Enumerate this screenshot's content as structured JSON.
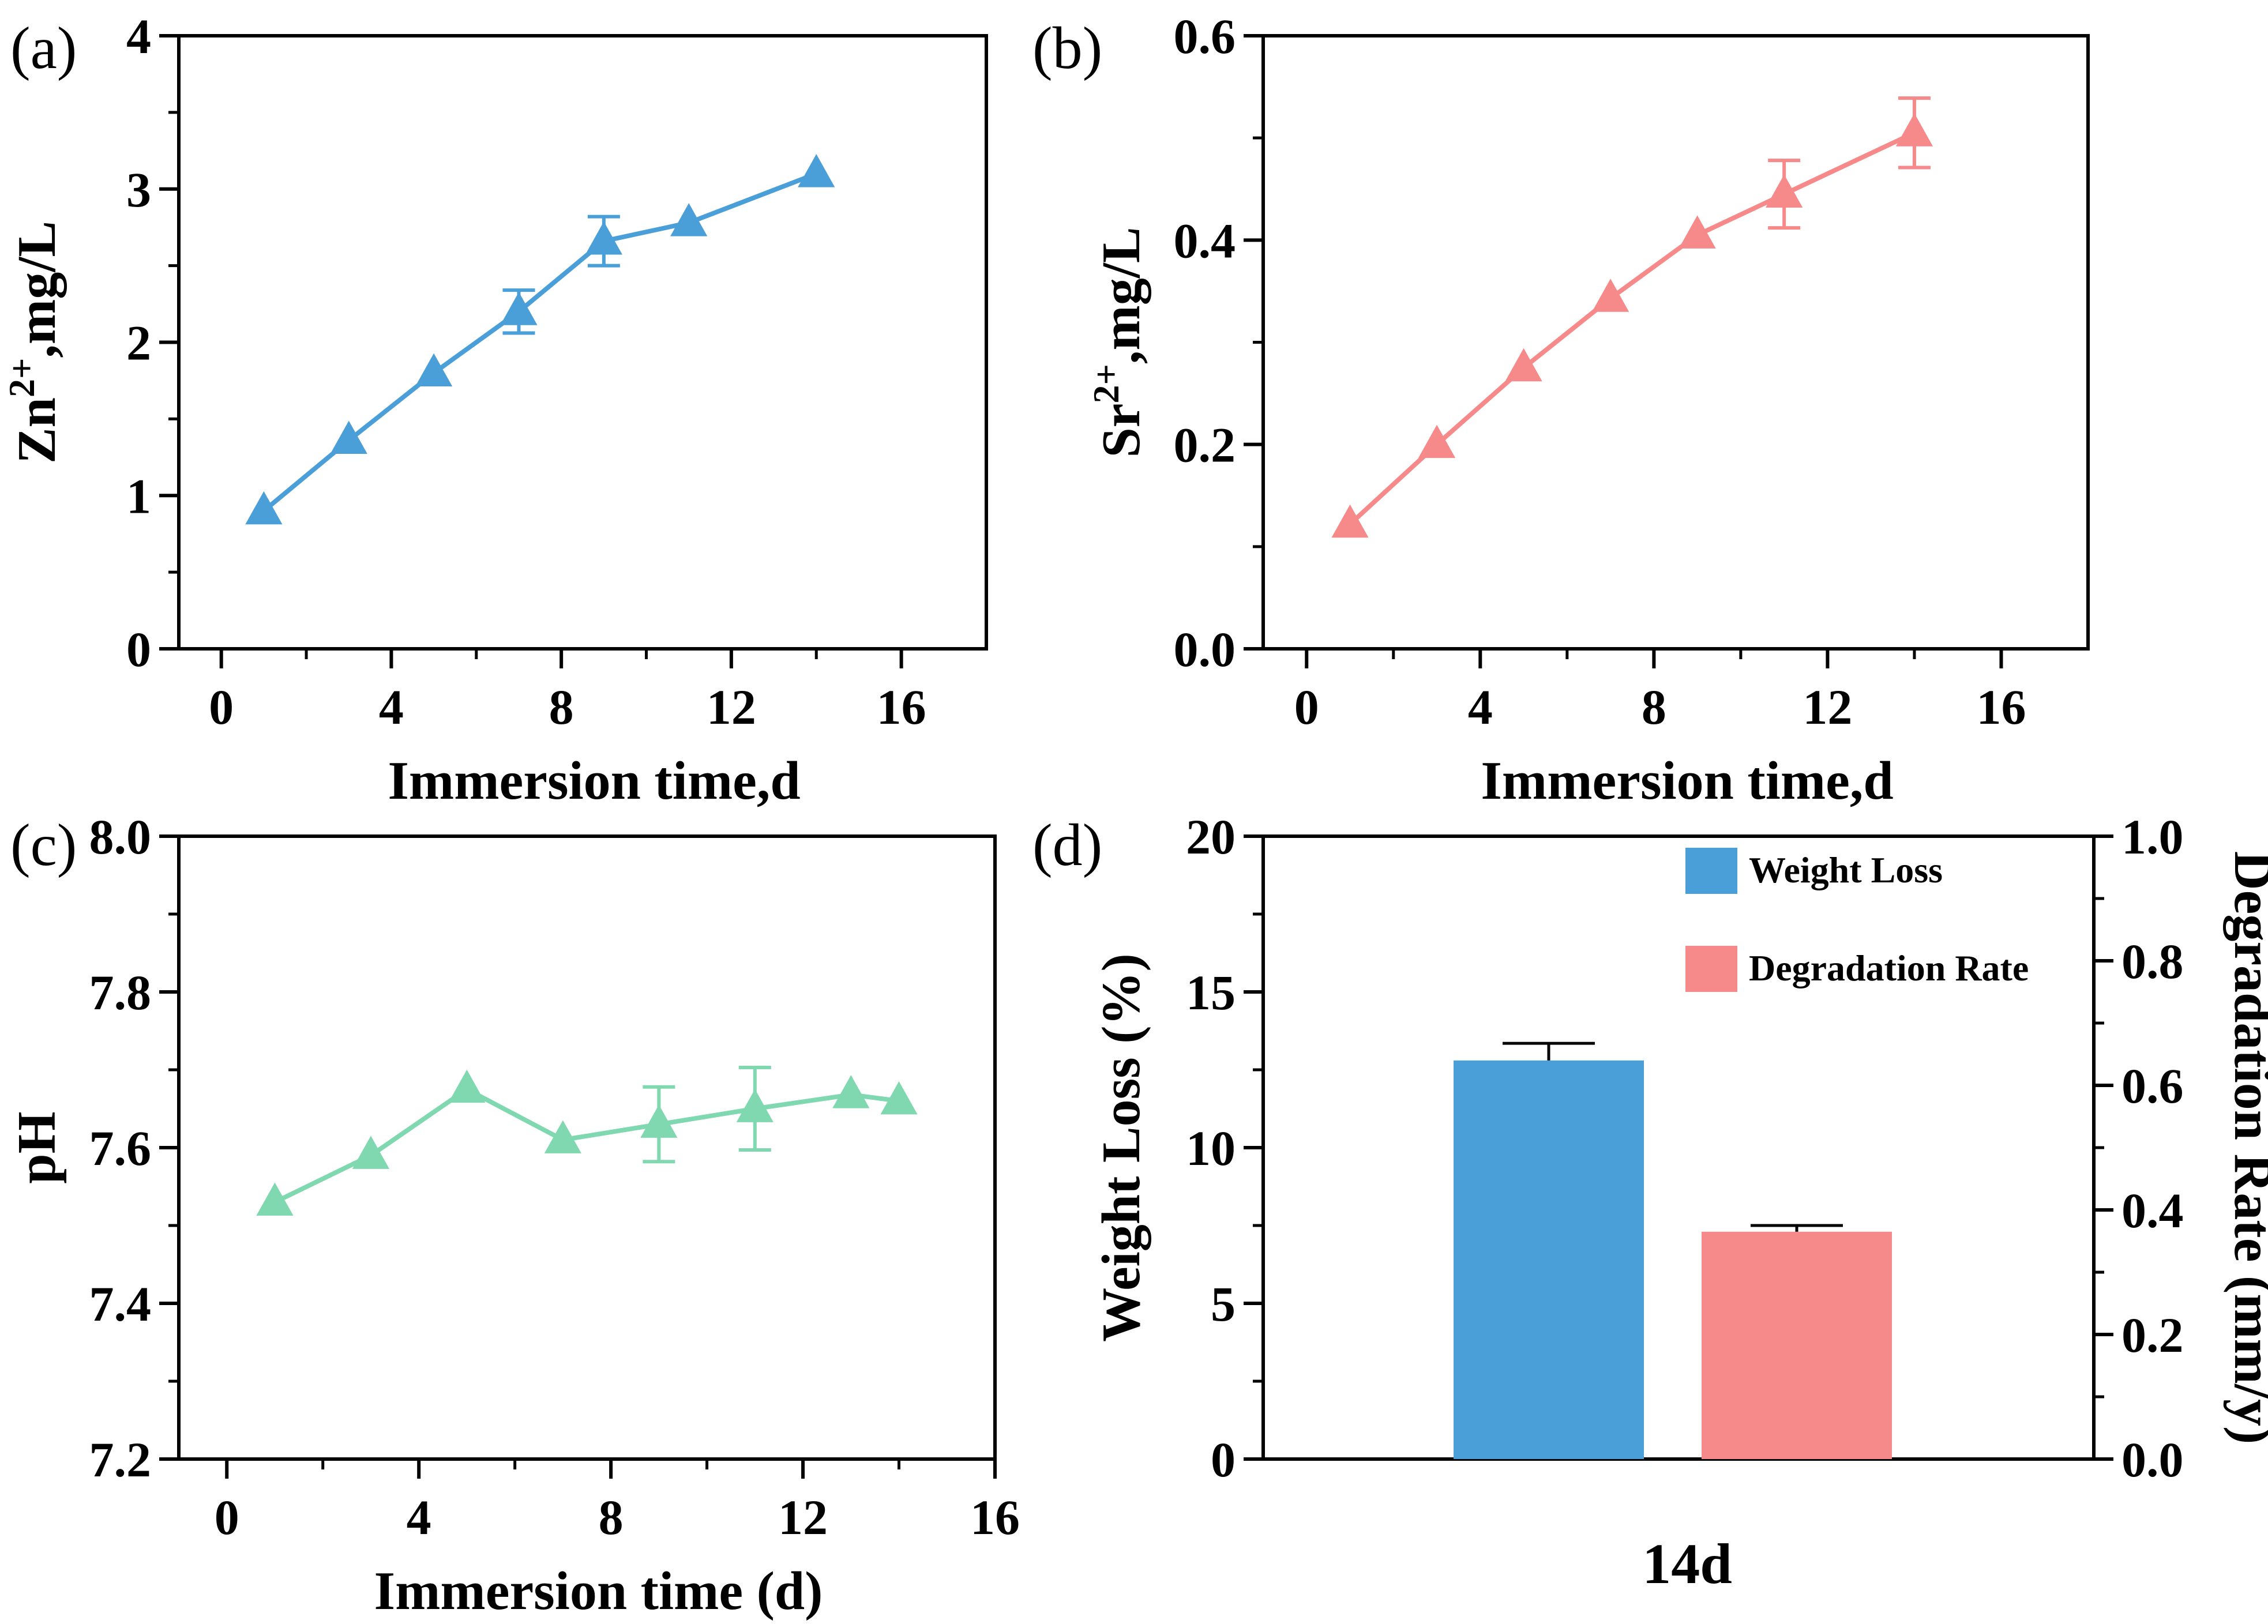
{
  "chart_data": [
    {
      "panel": "(a)",
      "type": "line",
      "title": "",
      "xlabel": "Immersion time,d",
      "ylabel_main": "Zn",
      "ylabel_sup": "2+",
      "ylabel_tail": ",mg/L",
      "xlim": [
        -1,
        18
      ],
      "ylim": [
        0,
        4
      ],
      "xticks": [
        0,
        4,
        8,
        12,
        16
      ],
      "yticks": [
        0,
        1,
        2,
        3,
        4
      ],
      "xtick_labels": [
        "0",
        "4",
        "8",
        "12",
        "16"
      ],
      "ytick_labels": [
        "0",
        "1",
        "2",
        "3",
        "4"
      ],
      "color": "#4a9fd8",
      "marker": "triangle",
      "x": [
        1,
        3,
        5,
        7,
        9,
        11,
        14
      ],
      "y": [
        0.9,
        1.36,
        1.8,
        2.2,
        2.66,
        2.78,
        3.1
      ],
      "err": [
        0,
        0,
        0,
        0.14,
        0.16,
        0,
        0
      ]
    },
    {
      "panel": "(b)",
      "type": "line",
      "title": "",
      "xlabel": "Immersion time,d",
      "ylabel_main": "Sr",
      "ylabel_sup": "2+",
      "ylabel_tail": ",mg/L",
      "xlim": [
        -1,
        18
      ],
      "ylim": [
        0,
        0.6
      ],
      "xticks": [
        0,
        4,
        8,
        12,
        16
      ],
      "yticks": [
        0,
        0.2,
        0.4,
        0.6
      ],
      "xtick_labels": [
        "0",
        "4",
        "8",
        "12",
        "16"
      ],
      "ytick_labels": [
        "0.0",
        "0.2",
        "0.4",
        "0.6"
      ],
      "color": "#f68a8a",
      "marker": "triangle",
      "x": [
        1,
        3,
        5,
        7,
        9,
        11,
        14
      ],
      "y": [
        0.122,
        0.2,
        0.275,
        0.343,
        0.405,
        0.445,
        0.505
      ],
      "err": [
        0,
        0,
        0,
        0,
        0,
        0.033,
        0.034
      ]
    },
    {
      "panel": "(c)",
      "type": "line",
      "title": "",
      "xlabel": "Immersion time (d)",
      "ylabel": "pH",
      "xlim": [
        -1,
        16
      ],
      "ylim": [
        7.2,
        8.0
      ],
      "xticks": [
        0,
        4,
        8,
        12,
        16
      ],
      "yticks": [
        7.2,
        7.4,
        7.6,
        7.8,
        8.0
      ],
      "xtick_labels": [
        "0",
        "4",
        "8",
        "12",
        "16"
      ],
      "ytick_labels": [
        "7.2",
        "7.4",
        "7.6",
        "7.8",
        "8.0"
      ],
      "color": "#7fd8b0",
      "marker": "triangle",
      "x": [
        1,
        3,
        5,
        7,
        9,
        11,
        13,
        14
      ],
      "y": [
        7.53,
        7.59,
        7.675,
        7.61,
        7.63,
        7.65,
        7.668,
        7.66
      ],
      "err": [
        0,
        0,
        0,
        0,
        0.048,
        0.053,
        0,
        0
      ]
    },
    {
      "panel": "(d)",
      "type": "bar",
      "title": "",
      "categories": [
        "14d"
      ],
      "ylabel_left": "Weight Loss (%)",
      "ylabel_right": "Degradation Rate (mm/y)",
      "ylim_left": [
        0,
        20
      ],
      "ylim_right": [
        0,
        1.0
      ],
      "yticks_left": [
        0,
        5,
        10,
        15,
        20
      ],
      "ytick_labels_left": [
        "0",
        "5",
        "10",
        "15",
        "20"
      ],
      "yticks_right": [
        0,
        0.2,
        0.4,
        0.6,
        0.8,
        1.0
      ],
      "ytick_labels_right": [
        "0.0",
        "0.2",
        "0.4",
        "0.6",
        "0.8",
        "1.0"
      ],
      "legend_position": "top-right",
      "series": [
        {
          "name": "Weight Loss",
          "axis": "left",
          "color": "#4a9fd8",
          "values": [
            12.8
          ],
          "err": [
            0.55
          ]
        },
        {
          "name": "Degradation Rate",
          "axis": "right",
          "color": "#f68a8a",
          "values": [
            0.365
          ],
          "err": [
            0.01
          ]
        }
      ]
    }
  ]
}
